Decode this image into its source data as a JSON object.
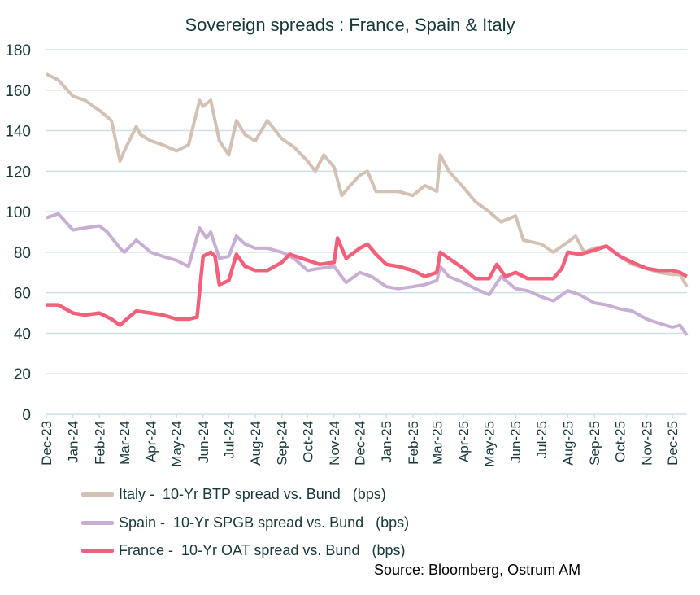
{
  "chart_data": {
    "type": "line",
    "title": "Sovereign spreads  : France, Spain & Italy",
    "source": "Source: Bloomberg, Ostrum AM",
    "ylim": [
      0,
      180
    ],
    "yticks": [
      0,
      20,
      40,
      60,
      80,
      100,
      120,
      140,
      160,
      180
    ],
    "xlim": [
      "2023-12-01",
      "2025-12-18"
    ],
    "xticks": [
      "Dec-23",
      "Jan-24",
      "Feb-24",
      "Mar-24",
      "Apr-24",
      "May-24",
      "Jun-24",
      "Jul-24",
      "Aug-24",
      "Sep-24",
      "Oct-24",
      "Nov-24",
      "Dec-24",
      "Jan-25",
      "Feb-25",
      "Mar-25",
      "Apr-25",
      "May-25",
      "Jun-25",
      "Jul-25",
      "Aug-25",
      "Sep-25",
      "Oct-25",
      "Nov-25",
      "Dec-25"
    ],
    "grid": true,
    "legend_position": "bottom",
    "series": [
      {
        "name": "Italy -  10-Yr BTP spread vs. Bund   (bps)",
        "color": "#d4c1b5",
        "x": [
          "2023-12-01",
          "2023-12-15",
          "2024-01-01",
          "2024-01-15",
          "2024-02-01",
          "2024-02-15",
          "2024-02-25",
          "2024-03-01",
          "2024-03-15",
          "2024-03-20",
          "2024-04-01",
          "2024-04-15",
          "2024-05-01",
          "2024-05-15",
          "2024-05-28",
          "2024-06-01",
          "2024-06-10",
          "2024-06-20",
          "2024-07-01",
          "2024-07-10",
          "2024-07-20",
          "2024-08-01",
          "2024-08-15",
          "2024-09-01",
          "2024-09-15",
          "2024-10-01",
          "2024-10-10",
          "2024-10-20",
          "2024-11-01",
          "2024-11-10",
          "2024-11-20",
          "2024-12-01",
          "2024-12-10",
          "2024-12-20",
          "2025-01-01",
          "2025-01-15",
          "2025-02-01",
          "2025-02-15",
          "2025-03-01",
          "2025-03-05",
          "2025-03-15",
          "2025-04-01",
          "2025-04-15",
          "2025-05-01",
          "2025-05-15",
          "2025-06-01",
          "2025-06-10",
          "2025-07-01",
          "2025-07-15",
          "2025-08-01",
          "2025-08-10",
          "2025-08-20",
          "2025-09-01",
          "2025-09-15",
          "2025-10-01",
          "2025-10-15",
          "2025-11-01",
          "2025-11-15",
          "2025-12-01",
          "2025-12-10",
          "2025-12-18"
        ],
        "values": [
          168,
          165,
          157,
          155,
          150,
          145,
          125,
          130,
          142,
          138,
          135,
          133,
          130,
          133,
          155,
          152,
          155,
          135,
          128,
          145,
          138,
          135,
          145,
          136,
          132,
          125,
          120,
          128,
          122,
          108,
          113,
          118,
          120,
          110,
          110,
          110,
          108,
          113,
          110,
          128,
          120,
          112,
          105,
          100,
          95,
          98,
          86,
          84,
          80,
          85,
          88,
          80,
          82,
          83,
          78,
          74,
          72,
          70,
          69,
          69,
          63
        ]
      },
      {
        "name": "Spain -  10-Yr SPGB spread vs. Bund   (bps)",
        "color": "#c9aed4",
        "x": [
          "2023-12-01",
          "2023-12-15",
          "2024-01-01",
          "2024-01-15",
          "2024-02-01",
          "2024-02-10",
          "2024-02-25",
          "2024-03-01",
          "2024-03-15",
          "2024-04-01",
          "2024-04-15",
          "2024-05-01",
          "2024-05-15",
          "2024-05-28",
          "2024-06-05",
          "2024-06-10",
          "2024-06-20",
          "2024-07-01",
          "2024-07-10",
          "2024-07-20",
          "2024-08-01",
          "2024-08-15",
          "2024-09-01",
          "2024-09-15",
          "2024-10-01",
          "2024-10-15",
          "2024-11-01",
          "2024-11-15",
          "2024-12-01",
          "2024-12-15",
          "2025-01-01",
          "2025-01-15",
          "2025-02-01",
          "2025-02-15",
          "2025-03-01",
          "2025-03-05",
          "2025-03-15",
          "2025-04-01",
          "2025-04-15",
          "2025-05-01",
          "2025-05-15",
          "2025-06-01",
          "2025-06-15",
          "2025-07-01",
          "2025-07-15",
          "2025-08-01",
          "2025-08-15",
          "2025-09-01",
          "2025-09-15",
          "2025-10-01",
          "2025-10-15",
          "2025-11-01",
          "2025-11-15",
          "2025-12-01",
          "2025-12-10",
          "2025-12-18"
        ],
        "values": [
          97,
          99,
          91,
          92,
          93,
          90,
          82,
          80,
          86,
          80,
          78,
          76,
          73,
          92,
          87,
          90,
          77,
          78,
          88,
          84,
          82,
          82,
          80,
          77,
          71,
          72,
          73,
          65,
          70,
          68,
          63,
          62,
          63,
          64,
          66,
          73,
          68,
          65,
          62,
          59,
          68,
          62,
          61,
          58,
          56,
          61,
          59,
          55,
          54,
          52,
          51,
          47,
          45,
          43,
          44,
          39
        ]
      },
      {
        "name": "France -  10-Yr OAT spread vs. Bund   (bps)",
        "color": "#f4607a",
        "x": [
          "2023-12-01",
          "2023-12-15",
          "2024-01-01",
          "2024-01-15",
          "2024-02-01",
          "2024-02-15",
          "2024-02-25",
          "2024-03-01",
          "2024-03-15",
          "2024-04-01",
          "2024-04-15",
          "2024-05-01",
          "2024-05-15",
          "2024-05-25",
          "2024-06-01",
          "2024-06-10",
          "2024-06-15",
          "2024-06-20",
          "2024-07-01",
          "2024-07-10",
          "2024-07-20",
          "2024-08-01",
          "2024-08-15",
          "2024-09-01",
          "2024-09-10",
          "2024-10-01",
          "2024-10-15",
          "2024-11-01",
          "2024-11-05",
          "2024-11-15",
          "2024-12-01",
          "2024-12-10",
          "2024-12-20",
          "2025-01-01",
          "2025-01-15",
          "2025-02-01",
          "2025-02-15",
          "2025-03-01",
          "2025-03-05",
          "2025-03-15",
          "2025-04-01",
          "2025-04-15",
          "2025-05-01",
          "2025-05-10",
          "2025-05-20",
          "2025-06-01",
          "2025-06-15",
          "2025-07-01",
          "2025-07-15",
          "2025-07-25",
          "2025-08-01",
          "2025-08-15",
          "2025-09-01",
          "2025-09-15",
          "2025-10-01",
          "2025-10-15",
          "2025-11-01",
          "2025-11-15",
          "2025-12-01",
          "2025-12-10",
          "2025-12-18"
        ],
        "values": [
          54,
          54,
          50,
          49,
          50,
          47,
          44,
          46,
          51,
          50,
          49,
          47,
          47,
          48,
          78,
          80,
          78,
          64,
          66,
          79,
          73,
          71,
          71,
          75,
          79,
          76,
          74,
          75,
          87,
          77,
          82,
          84,
          79,
          74,
          73,
          71,
          68,
          70,
          80,
          77,
          72,
          67,
          67,
          74,
          68,
          70,
          67,
          67,
          67,
          72,
          80,
          79,
          81,
          83,
          78,
          75,
          72,
          71,
          71,
          70,
          68
        ]
      }
    ]
  }
}
